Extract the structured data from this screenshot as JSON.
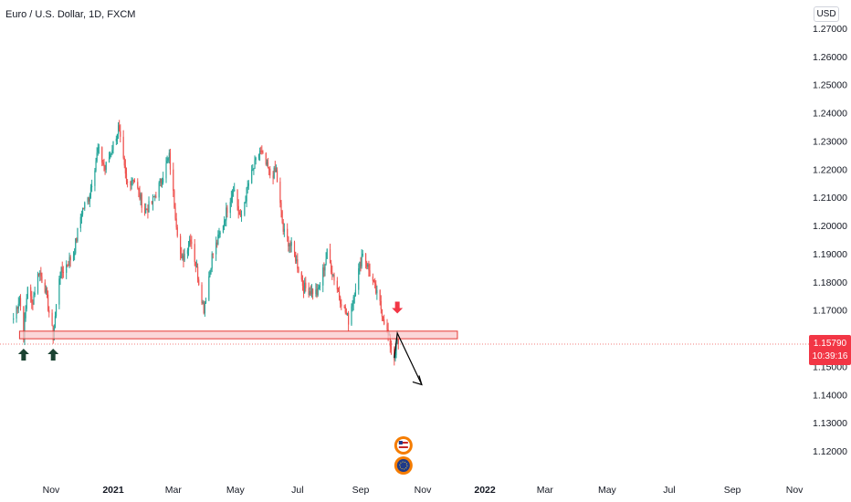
{
  "header": {
    "symbol_title": "Euro / U.S. Dollar, 1D, FXCM",
    "currency": "USD"
  },
  "price_tag": {
    "price": "1.15790",
    "countdown": "10:39:16",
    "color": "#f23645"
  },
  "colors": {
    "up": "#26a69a",
    "down": "#ef5350",
    "zone_fill": "#f9c9cc",
    "zone_border": "#e53935",
    "arrow_up": "#1b4332",
    "arrow_down": "#f23645",
    "projection": "#000000"
  },
  "annotations": {
    "support_zone": {
      "from": "2020-10-01",
      "to": "2021-12-05",
      "low": 1.1598,
      "high": 1.1625
    },
    "up_arrows": [
      "2020-10-05",
      "2020-11-03"
    ],
    "down_arrow": {
      "date": "2021-10-07",
      "price": 1.1665
    },
    "projection_path": [
      {
        "date": "2021-10-04",
        "price": 1.153
      },
      {
        "date": "2021-10-07",
        "price": 1.1618
      },
      {
        "date": "2021-10-31",
        "price": 1.1435
      }
    ],
    "icons": [
      "us-flag-icon",
      "eu-flag-icon"
    ]
  },
  "chart_data": {
    "type": "candlestick",
    "title": "Euro / U.S. Dollar, 1D, FXCM",
    "xlabel": "",
    "ylabel": "",
    "y_ticks": [
      "1.27000",
      "1.26000",
      "1.25000",
      "1.24000",
      "1.23000",
      "1.22000",
      "1.21000",
      "1.20000",
      "1.19000",
      "1.18000",
      "1.17000",
      "1.16000",
      "1.15000",
      "1.14000",
      "1.13000",
      "1.12000"
    ],
    "x_ticks": [
      "Nov",
      "2021",
      "Mar",
      "May",
      "Jul",
      "Sep",
      "Nov",
      "2022",
      "Mar",
      "May",
      "Jul",
      "Sep",
      "Nov"
    ],
    "x_tick_dates": [
      "2020-11-01",
      "2021-01-01",
      "2021-03-01",
      "2021-05-01",
      "2021-07-01",
      "2021-09-01",
      "2021-11-01",
      "2022-01-01",
      "2022-03-01",
      "2022-05-01",
      "2022-07-01",
      "2022-09-01",
      "2022-11-01"
    ],
    "last_price": 1.1579,
    "series": [
      {
        "points": [
          [
            "2020-09-25",
            1.167
          ],
          [
            "2020-10-01",
            1.1745
          ],
          [
            "2020-10-05",
            1.1611
          ],
          [
            "2020-10-09",
            1.179
          ],
          [
            "2020-10-13",
            1.172
          ],
          [
            "2020-10-20",
            1.184
          ],
          [
            "2020-10-26",
            1.178
          ],
          [
            "2020-11-03",
            1.1605
          ],
          [
            "2020-11-09",
            1.182
          ],
          [
            "2020-11-16",
            1.186
          ],
          [
            "2020-11-23",
            1.19
          ],
          [
            "2020-12-01",
            1.205
          ],
          [
            "2020-12-08",
            1.21
          ],
          [
            "2020-12-17",
            1.227
          ],
          [
            "2020-12-24",
            1.22
          ],
          [
            "2021-01-06",
            1.2345
          ],
          [
            "2021-01-14",
            1.215
          ],
          [
            "2021-01-21",
            1.217
          ],
          [
            "2021-02-01",
            1.205
          ],
          [
            "2021-02-08",
            1.208
          ],
          [
            "2021-02-15",
            1.214
          ],
          [
            "2021-02-25",
            1.2243
          ],
          [
            "2021-03-04",
            1.201
          ],
          [
            "2021-03-09",
            1.187
          ],
          [
            "2021-03-18",
            1.196
          ],
          [
            "2021-03-31",
            1.1705
          ],
          [
            "2021-04-08",
            1.189
          ],
          [
            "2021-04-16",
            1.197
          ],
          [
            "2021-04-29",
            1.214
          ],
          [
            "2021-05-06",
            1.202
          ],
          [
            "2021-05-14",
            1.215
          ],
          [
            "2021-05-25",
            1.2266
          ],
          [
            "2021-06-04",
            1.218
          ],
          [
            "2021-06-10",
            1.219
          ],
          [
            "2021-06-17",
            1.198
          ],
          [
            "2021-06-28",
            1.19
          ],
          [
            "2021-07-07",
            1.178
          ],
          [
            "2021-07-21",
            1.176
          ],
          [
            "2021-07-30",
            1.19
          ],
          [
            "2021-08-12",
            1.174
          ],
          [
            "2021-08-20",
            1.1664
          ],
          [
            "2021-09-03",
            1.1909
          ],
          [
            "2021-09-10",
            1.183
          ],
          [
            "2021-09-20",
            1.172
          ],
          [
            "2021-09-30",
            1.158
          ],
          [
            "2021-10-04",
            1.153
          ],
          [
            "2021-10-07",
            1.16
          ],
          [
            "2021-10-08",
            1.1579
          ]
        ]
      }
    ]
  }
}
